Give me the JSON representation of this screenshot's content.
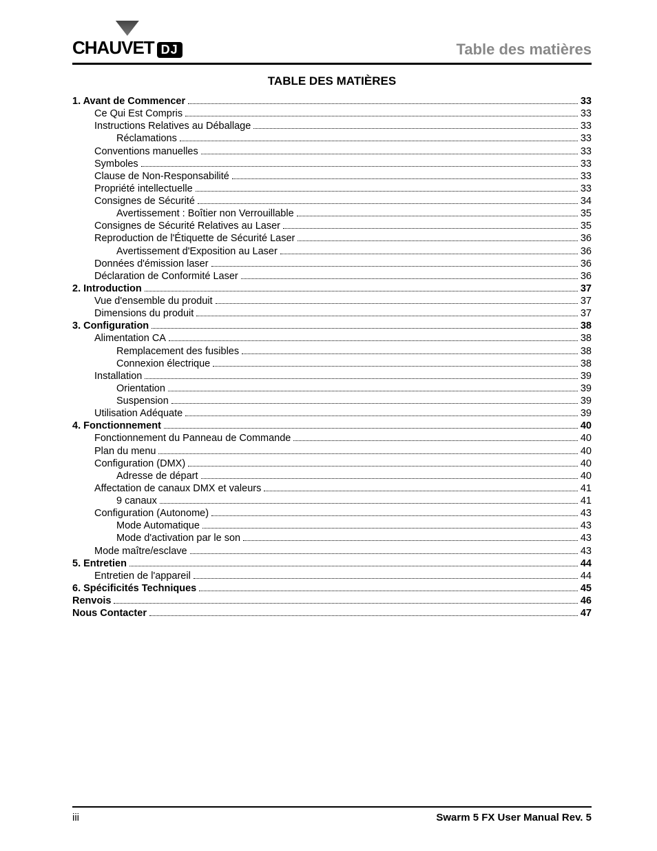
{
  "header": {
    "brand": "CHAUVET",
    "brand_suffix": "DJ",
    "section_title": "Table des matières"
  },
  "toc_title": "TABLE DES MATIÈRES",
  "toc": [
    {
      "level": 0,
      "label": "1. Avant de Commencer",
      "page": "33"
    },
    {
      "level": 1,
      "label": "Ce Qui Est Compris",
      "page": "33"
    },
    {
      "level": 1,
      "label": "Instructions Relatives au Déballage",
      "page": "33"
    },
    {
      "level": 2,
      "label": "Réclamations",
      "page": "33"
    },
    {
      "level": 1,
      "label": "Conventions manuelles",
      "page": "33"
    },
    {
      "level": 1,
      "label": "Symboles",
      "page": "33"
    },
    {
      "level": 1,
      "label": "Clause de Non-Responsabilité",
      "page": "33"
    },
    {
      "level": 1,
      "label": "Propriété intellectuelle",
      "page": "33"
    },
    {
      "level": 1,
      "label": "Consignes de Sécurité",
      "page": "34"
    },
    {
      "level": 2,
      "label": "Avertissement : Boîtier non Verrouillable",
      "page": "35"
    },
    {
      "level": 1,
      "label": "Consignes de Sécurité Relatives au Laser",
      "page": "35"
    },
    {
      "level": 1,
      "label": "Reproduction de l'Étiquette de Sécurité Laser",
      "page": "36"
    },
    {
      "level": 2,
      "label": "Avertissement d'Exposition au Laser",
      "page": "36"
    },
    {
      "level": 1,
      "label": "Données d'émission laser",
      "page": "36"
    },
    {
      "level": 1,
      "label": "Déclaration de Conformité Laser",
      "page": "36"
    },
    {
      "level": 0,
      "label": "2. Introduction",
      "page": "37"
    },
    {
      "level": 1,
      "label": "Vue d'ensemble du produit",
      "page": "37"
    },
    {
      "level": 1,
      "label": "Dimensions du produit",
      "page": "37"
    },
    {
      "level": 0,
      "label": "3. Configuration",
      "page": "38"
    },
    {
      "level": 1,
      "label": "Alimentation CA",
      "page": "38"
    },
    {
      "level": 2,
      "label": "Remplacement des fusibles",
      "page": "38"
    },
    {
      "level": 2,
      "label": "Connexion électrique",
      "page": "38"
    },
    {
      "level": 1,
      "label": "Installation",
      "page": "39"
    },
    {
      "level": 2,
      "label": "Orientation",
      "page": "39"
    },
    {
      "level": 2,
      "label": "Suspension",
      "page": "39"
    },
    {
      "level": 1,
      "label": "Utilisation Adéquate",
      "page": "39"
    },
    {
      "level": 0,
      "label": "4. Fonctionnement",
      "page": "40"
    },
    {
      "level": 1,
      "label": "Fonctionnement du Panneau de Commande",
      "page": "40"
    },
    {
      "level": 1,
      "label": "Plan du menu",
      "page": "40"
    },
    {
      "level": 1,
      "label": "Configuration (DMX)",
      "page": "40"
    },
    {
      "level": 2,
      "label": "Adresse de départ",
      "page": "40"
    },
    {
      "level": 1,
      "label": "Affectation de canaux DMX et valeurs",
      "page": "41"
    },
    {
      "level": 2,
      "label": "9 canaux",
      "page": "41"
    },
    {
      "level": 1,
      "label": "Configuration (Autonome)",
      "page": "43"
    },
    {
      "level": 2,
      "label": "Mode Automatique",
      "page": "43"
    },
    {
      "level": 2,
      "label": "Mode d'activation par le son",
      "page": "43"
    },
    {
      "level": 1,
      "label": "Mode maître/esclave",
      "page": "43"
    },
    {
      "level": 0,
      "label": "5. Entretien",
      "page": "44"
    },
    {
      "level": 1,
      "label": "Entretien de l'appareil",
      "page": "44"
    },
    {
      "level": 0,
      "label": "6. Spécificités Techniques",
      "page": "45"
    },
    {
      "level": 0,
      "label": "Renvois",
      "page": "46"
    },
    {
      "level": 0,
      "label": "Nous Contacter",
      "page": "47"
    }
  ],
  "footer": {
    "left": "iii",
    "right": "Swarm 5 FX User Manual Rev. 5"
  }
}
